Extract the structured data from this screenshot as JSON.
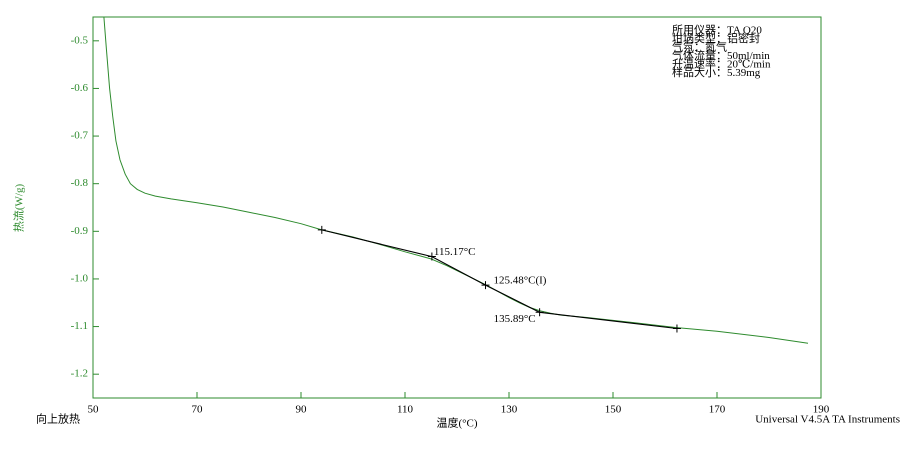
{
  "chart_data": {
    "type": "line",
    "y_label": "热流(W/g)",
    "x_label": "温度(°C)",
    "corner_left": "向上放热",
    "corner_right": "Universal V4.5A TA Instruments",
    "info": [
      "所用仪器：TA Q20",
      "坩埚类型：铝密封",
      "气氛：氮气",
      "气体流量：50ml/min",
      "升温速率：20℃/min",
      "样品大小：5.39mg"
    ],
    "xlim": [
      50,
      190
    ],
    "xticks": [
      50,
      70,
      90,
      110,
      130,
      150,
      170,
      190
    ],
    "ylim": [
      -1.25,
      -0.45
    ],
    "yticks": [
      -0.5,
      -0.6,
      -0.7,
      -0.8,
      -0.9,
      {
        "value": -1,
        "label": "-1.0"
      },
      -1.1,
      -1.2
    ],
    "series": [
      {
        "color": "#2e8b2e",
        "x": [
          52.1,
          52.6,
          53.2,
          53.8,
          54.4,
          55.2,
          56.2,
          57.2,
          58.5,
          60,
          62,
          65,
          70,
          75,
          80,
          85,
          90,
          94,
          100,
          105,
          110,
          115,
          118,
          121,
          124,
          126,
          128,
          130,
          132,
          134,
          136,
          138,
          140,
          145,
          150,
          155,
          162,
          170,
          180,
          187.5
        ],
        "values": [
          -0.45,
          -0.52,
          -0.6,
          -0.66,
          -0.71,
          -0.75,
          -0.78,
          -0.8,
          -0.812,
          -0.82,
          -0.826,
          -0.832,
          -0.84,
          -0.849,
          -0.86,
          -0.871,
          -0.884,
          -0.897,
          -0.912,
          -0.927,
          -0.943,
          -0.958,
          -0.972,
          -0.988,
          -1.004,
          -1.015,
          -1.027,
          -1.039,
          -1.05,
          -1.06,
          -1.067,
          -1.072,
          -1.076,
          -1.081,
          -1.087,
          -1.093,
          -1.102,
          -1.11,
          -1.123,
          -1.135
        ]
      },
      {
        "color": "#000000",
        "x": [
          94,
          115.17,
          125.48,
          135.89,
          162.3
        ],
        "values": [
          -0.897,
          -0.953,
          -1.013,
          -1.07,
          -1.104
        ]
      }
    ],
    "annotations": [
      {
        "marker": 1,
        "text": "115.17°C"
      },
      {
        "marker": 2,
        "text": "125.48°C(I)"
      },
      {
        "marker": 3,
        "text": "135.89°C"
      }
    ]
  }
}
